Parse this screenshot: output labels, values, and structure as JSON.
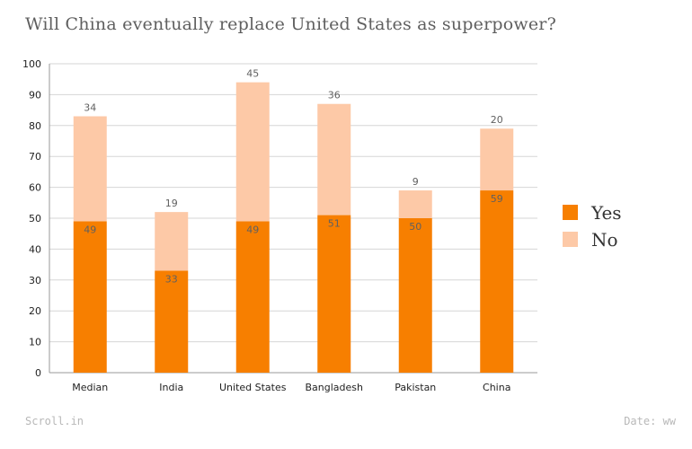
{
  "chart_data": {
    "type": "bar",
    "stacked": true,
    "title": "Will China eventually replace United States as superpower?",
    "categories": [
      "Median",
      "India",
      "United States",
      "Bangladesh",
      "Pakistan",
      "China"
    ],
    "series": [
      {
        "name": "Yes",
        "values": [
          49,
          33,
          49,
          51,
          50,
          59
        ],
        "color": "#f77f00"
      },
      {
        "name": "No",
        "values": [
          34,
          19,
          45,
          36,
          9,
          20
        ],
        "color": "#fdc9a7"
      }
    ],
    "ylim": [
      0,
      100
    ],
    "yticks": [
      0,
      10,
      20,
      30,
      40,
      50,
      60,
      70,
      80,
      90,
      100
    ],
    "grid": true,
    "legend_position": "right"
  },
  "footer": {
    "source": "Scroll.in",
    "date": "Date: ww"
  }
}
